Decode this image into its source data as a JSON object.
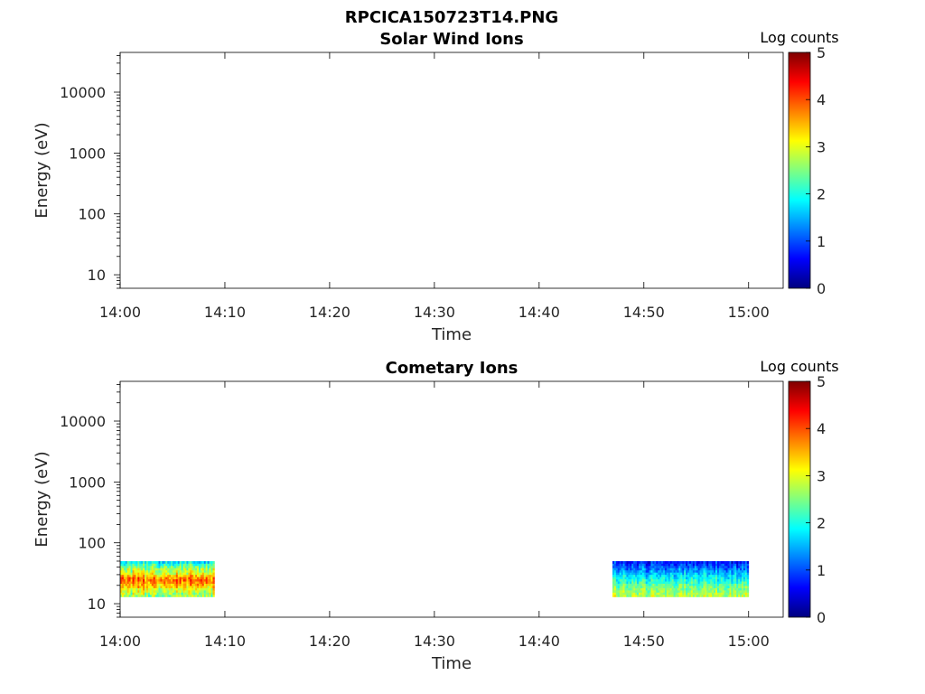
{
  "figure_title": "RPCICA150723T14.PNG",
  "colormap": {
    "colors": [
      "#00007f",
      "#0000ff",
      "#0080ff",
      "#00ffff",
      "#80ff80",
      "#ffff00",
      "#ff8000",
      "#ff0000",
      "#7f0000"
    ]
  },
  "chart_data": [
    {
      "type": "heatmap",
      "title": "Solar Wind Ions",
      "xlabel": "Time",
      "ylabel": "Energy (eV)",
      "x_ticks": [
        "14:00",
        "14:10",
        "14:20",
        "14:30",
        "14:40",
        "14:50",
        "15:00"
      ],
      "x_range_minutes": [
        0,
        63.3
      ],
      "y_scale": "log",
      "y_ticks": [
        "10",
        "100",
        "1000",
        "10000"
      ],
      "y_range": [
        6,
        45000
      ],
      "colorbar": {
        "label": "Log counts",
        "ticks": [
          "0",
          "1",
          "2",
          "3",
          "4",
          "5"
        ],
        "range": [
          0,
          5
        ]
      },
      "regions": []
    },
    {
      "type": "heatmap",
      "title": "Cometary Ions",
      "xlabel": "Time",
      "ylabel": "Energy (eV)",
      "x_ticks": [
        "14:00",
        "14:10",
        "14:20",
        "14:30",
        "14:40",
        "14:50",
        "15:00"
      ],
      "x_range_minutes": [
        0,
        63.3
      ],
      "y_scale": "log",
      "y_ticks": [
        "10",
        "100",
        "1000",
        "10000"
      ],
      "y_range": [
        6,
        45000
      ],
      "colorbar": {
        "label": "Log counts",
        "ticks": [
          "0",
          "1",
          "2",
          "3",
          "4",
          "5"
        ],
        "range": [
          0,
          5
        ]
      },
      "regions": [
        {
          "time_start": "14:00",
          "time_end": "14:09",
          "energy_min_ev": 13,
          "energy_max_ev": 50,
          "level_profile_low_to_high_energy": [
            2.6,
            2.9,
            3.5,
            3.9,
            3.0,
            2.6,
            1.8
          ],
          "variability": 0.8
        },
        {
          "time_start": "14:47",
          "time_end": "15:00",
          "energy_min_ev": 13,
          "energy_max_ev": 50,
          "level_profile_low_to_high_energy": [
            2.8,
            2.6,
            2.3,
            2.0,
            1.6,
            1.2,
            0.8
          ],
          "variability": 0.6
        }
      ]
    }
  ]
}
